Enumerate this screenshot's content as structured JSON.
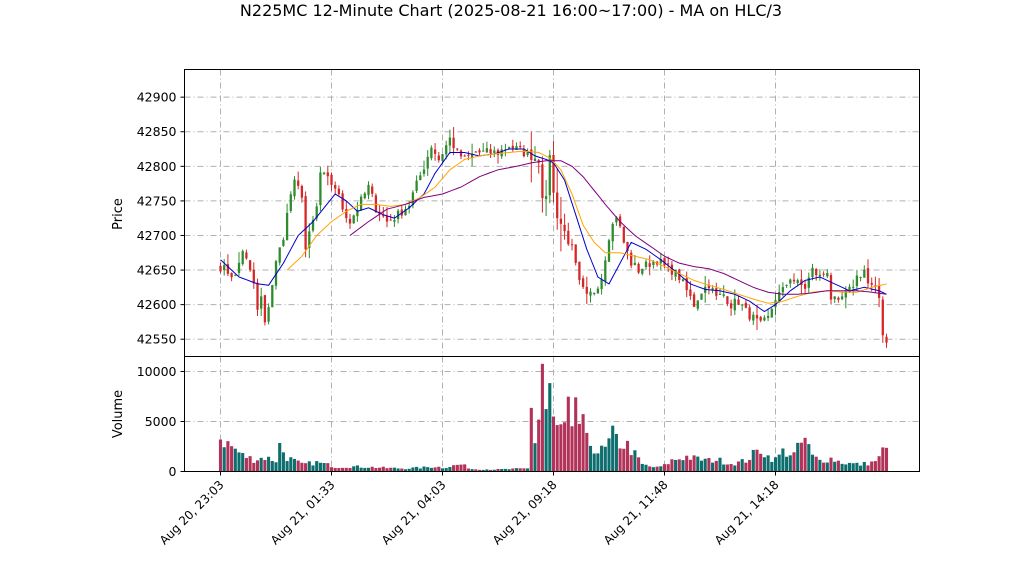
{
  "chart_data": {
    "type": "candlestick",
    "title": "N225MC 12-Minute Chart (2025-08-21 16:00~17:00) - MA on HLC/3",
    "price_panel": {
      "ylabel": "Price",
      "ylim": [
        42525,
        42940
      ],
      "yticks": [
        42550,
        42600,
        42650,
        42700,
        42750,
        42800,
        42850,
        42900
      ],
      "grid": true
    },
    "volume_panel": {
      "ylabel": "Volume",
      "ylim": [
        0,
        11500
      ],
      "yticks": [
        0,
        5000,
        10000
      ],
      "grid": true
    },
    "x_tick_labels": [
      "Aug 20, 23:03",
      "Aug 21, 01:33",
      "Aug 21, 04:03",
      "Aug 21, 09:18",
      "Aug 21, 11:48",
      "Aug 21, 14:18"
    ],
    "x_tick_index": [
      0,
      30,
      60,
      90,
      120,
      150
    ],
    "n_bars": 181,
    "colors": {
      "up": "#2e8b2e",
      "down": "#d62728",
      "volume_up": "#0e6e6e",
      "volume_down": "#b2335a",
      "ma_short": "#0000cc",
      "ma_mid": "#ffa500",
      "ma_long": "#800080",
      "grid": "#b0b0b0"
    },
    "close_anchors": [
      [
        0,
        42655
      ],
      [
        4,
        42640
      ],
      [
        6,
        42680
      ],
      [
        9,
        42630
      ],
      [
        10,
        42590
      ],
      [
        11,
        42610
      ],
      [
        12,
        42570
      ],
      [
        13,
        42600
      ],
      [
        15,
        42660
      ],
      [
        17,
        42700
      ],
      [
        19,
        42760
      ],
      [
        20,
        42775
      ],
      [
        22,
        42760
      ],
      [
        23,
        42680
      ],
      [
        26,
        42740
      ],
      [
        27,
        42790
      ],
      [
        29,
        42780
      ],
      [
        31,
        42770
      ],
      [
        33,
        42740
      ],
      [
        35,
        42720
      ],
      [
        36,
        42730
      ],
      [
        38,
        42750
      ],
      [
        40,
        42770
      ],
      [
        42,
        42740
      ],
      [
        45,
        42720
      ],
      [
        48,
        42730
      ],
      [
        51,
        42745
      ],
      [
        52,
        42760
      ],
      [
        55,
        42800
      ],
      [
        57,
        42830
      ],
      [
        59,
        42810
      ],
      [
        62,
        42840
      ],
      [
        64,
        42820
      ],
      [
        66,
        42810
      ],
      [
        69,
        42820
      ],
      [
        72,
        42820
      ],
      [
        75,
        42820
      ],
      [
        78,
        42830
      ],
      [
        82,
        42820
      ],
      [
        86,
        42810
      ],
      [
        87,
        42760
      ],
      [
        88,
        42750
      ],
      [
        89,
        42820
      ],
      [
        90,
        42760
      ],
      [
        91,
        42730
      ],
      [
        95,
        42680
      ],
      [
        97,
        42630
      ],
      [
        99,
        42610
      ],
      [
        101,
        42620
      ],
      [
        103,
        42640
      ],
      [
        105,
        42700
      ],
      [
        107,
        42730
      ],
      [
        109,
        42690
      ],
      [
        111,
        42660
      ],
      [
        113,
        42650
      ],
      [
        116,
        42660
      ],
      [
        118,
        42665
      ],
      [
        120,
        42655
      ],
      [
        122,
        42650
      ],
      [
        124,
        42640
      ],
      [
        126,
        42620
      ],
      [
        128,
        42600
      ],
      [
        130,
        42620
      ],
      [
        132,
        42630
      ],
      [
        134,
        42610
      ],
      [
        136,
        42615
      ],
      [
        138,
        42600
      ],
      [
        140,
        42605
      ],
      [
        142,
        42590
      ],
      [
        144,
        42580
      ],
      [
        146,
        42570
      ],
      [
        148,
        42580
      ],
      [
        150,
        42610
      ],
      [
        152,
        42620
      ],
      [
        154,
        42640
      ],
      [
        156,
        42630
      ],
      [
        158,
        42625
      ],
      [
        160,
        42650
      ],
      [
        162,
        42640
      ],
      [
        164,
        42650
      ],
      [
        165,
        42610
      ],
      [
        167,
        42600
      ],
      [
        168,
        42610
      ],
      [
        170,
        42620
      ],
      [
        172,
        42640
      ],
      [
        174,
        42650
      ],
      [
        175,
        42630
      ],
      [
        177,
        42620
      ],
      [
        178,
        42610
      ],
      [
        179,
        42560
      ],
      [
        180,
        42545
      ]
    ],
    "volume_anchors": [
      [
        0,
        3300
      ],
      [
        3,
        2500
      ],
      [
        6,
        1600
      ],
      [
        9,
        1200
      ],
      [
        12,
        1400
      ],
      [
        15,
        1100
      ],
      [
        16,
        2600
      ],
      [
        18,
        1400
      ],
      [
        22,
        700
      ],
      [
        26,
        900
      ],
      [
        30,
        600
      ],
      [
        31,
        450
      ],
      [
        35,
        500
      ],
      [
        40,
        450
      ],
      [
        45,
        350
      ],
      [
        50,
        300
      ],
      [
        55,
        400
      ],
      [
        58,
        500
      ],
      [
        60,
        400
      ],
      [
        65,
        700
      ],
      [
        68,
        250
      ],
      [
        75,
        200
      ],
      [
        79,
        250
      ],
      [
        83,
        300
      ],
      [
        84,
        7000
      ],
      [
        85,
        3000
      ],
      [
        86,
        5200
      ],
      [
        87,
        10800
      ],
      [
        88,
        6000
      ],
      [
        89,
        7800
      ],
      [
        90,
        5000
      ],
      [
        91,
        4300
      ],
      [
        93,
        4000
      ],
      [
        94,
        6200
      ],
      [
        95,
        3500
      ],
      [
        96,
        7700
      ],
      [
        97,
        4800
      ],
      [
        98,
        4500
      ],
      [
        99,
        3000
      ],
      [
        100,
        2800
      ],
      [
        102,
        2000
      ],
      [
        104,
        2200
      ],
      [
        106,
        3600
      ],
      [
        108,
        2800
      ],
      [
        110,
        2600
      ],
      [
        112,
        1700
      ],
      [
        114,
        700
      ],
      [
        116,
        500
      ],
      [
        118,
        400
      ],
      [
        120,
        600
      ],
      [
        122,
        1100
      ],
      [
        124,
        1300
      ],
      [
        126,
        1500
      ],
      [
        128,
        1300
      ],
      [
        130,
        1200
      ],
      [
        132,
        1100
      ],
      [
        134,
        1200
      ],
      [
        136,
        1000
      ],
      [
        138,
        800
      ],
      [
        140,
        900
      ],
      [
        142,
        1100
      ],
      [
        144,
        1700
      ],
      [
        146,
        2200
      ],
      [
        148,
        1500
      ],
      [
        150,
        1200
      ],
      [
        152,
        2000
      ],
      [
        155,
        1700
      ],
      [
        157,
        2800
      ],
      [
        158,
        3200
      ],
      [
        160,
        1500
      ],
      [
        162,
        1100
      ],
      [
        165,
        1300
      ],
      [
        168,
        900
      ],
      [
        170,
        800
      ],
      [
        173,
        700
      ],
      [
        176,
        900
      ],
      [
        178,
        1300
      ],
      [
        179,
        2200
      ],
      [
        180,
        2000
      ]
    ],
    "ma_anchors": {
      "short": [
        [
          0,
          42665
        ],
        [
          5,
          42640
        ],
        [
          10,
          42630
        ],
        [
          13,
          42628
        ],
        [
          17,
          42660
        ],
        [
          21,
          42700
        ],
        [
          25,
          42720
        ],
        [
          28,
          42740
        ],
        [
          31,
          42760
        ],
        [
          34,
          42750
        ],
        [
          37,
          42735
        ],
        [
          40,
          42740
        ],
        [
          44,
          42730
        ],
        [
          47,
          42725
        ],
        [
          51,
          42740
        ],
        [
          55,
          42760
        ],
        [
          58,
          42790
        ],
        [
          62,
          42820
        ],
        [
          66,
          42820
        ],
        [
          70,
          42815
        ],
        [
          74,
          42818
        ],
        [
          78,
          42825
        ],
        [
          82,
          42825
        ],
        [
          85,
          42815
        ],
        [
          88,
          42810
        ],
        [
          90,
          42805
        ],
        [
          93,
          42780
        ],
        [
          96,
          42730
        ],
        [
          99,
          42680
        ],
        [
          102,
          42640
        ],
        [
          105,
          42630
        ],
        [
          108,
          42660
        ],
        [
          111,
          42690
        ],
        [
          115,
          42680
        ],
        [
          119,
          42665
        ],
        [
          123,
          42648
        ],
        [
          127,
          42630
        ],
        [
          131,
          42622
        ],
        [
          135,
          42620
        ],
        [
          139,
          42615
        ],
        [
          143,
          42605
        ],
        [
          147,
          42590
        ],
        [
          150,
          42600
        ],
        [
          154,
          42620
        ],
        [
          158,
          42635
        ],
        [
          162,
          42640
        ],
        [
          166,
          42630
        ],
        [
          170,
          42620
        ],
        [
          174,
          42625
        ],
        [
          178,
          42620
        ],
        [
          180,
          42615
        ]
      ],
      "mid": [
        [
          18,
          42650
        ],
        [
          22,
          42670
        ],
        [
          26,
          42700
        ],
        [
          30,
          42720
        ],
        [
          34,
          42735
        ],
        [
          38,
          42745
        ],
        [
          42,
          42745
        ],
        [
          46,
          42742
        ],
        [
          50,
          42745
        ],
        [
          54,
          42755
        ],
        [
          58,
          42770
        ],
        [
          62,
          42795
        ],
        [
          66,
          42810
        ],
        [
          70,
          42815
        ],
        [
          74,
          42818
        ],
        [
          78,
          42820
        ],
        [
          82,
          42822
        ],
        [
          86,
          42820
        ],
        [
          89,
          42812
        ],
        [
          92,
          42795
        ],
        [
          95,
          42760
        ],
        [
          98,
          42715
        ],
        [
          101,
          42690
        ],
        [
          104,
          42675
        ],
        [
          108,
          42675
        ],
        [
          112,
          42670
        ],
        [
          116,
          42665
        ],
        [
          120,
          42655
        ],
        [
          124,
          42645
        ],
        [
          128,
          42635
        ],
        [
          132,
          42628
        ],
        [
          136,
          42622
        ],
        [
          140,
          42615
        ],
        [
          144,
          42608
        ],
        [
          148,
          42602
        ],
        [
          152,
          42605
        ],
        [
          156,
          42612
        ],
        [
          160,
          42618
        ],
        [
          164,
          42620
        ],
        [
          168,
          42618
        ],
        [
          172,
          42618
        ],
        [
          176,
          42625
        ],
        [
          180,
          42630
        ]
      ],
      "long": [
        [
          35,
          42700
        ],
        [
          40,
          42720
        ],
        [
          45,
          42738
        ],
        [
          50,
          42745
        ],
        [
          55,
          42755
        ],
        [
          60,
          42760
        ],
        [
          65,
          42770
        ],
        [
          70,
          42785
        ],
        [
          75,
          42795
        ],
        [
          80,
          42800
        ],
        [
          84,
          42805
        ],
        [
          88,
          42808
        ],
        [
          92,
          42808
        ],
        [
          95,
          42800
        ],
        [
          98,
          42785
        ],
        [
          101,
          42765
        ],
        [
          104,
          42745
        ],
        [
          108,
          42720
        ],
        [
          112,
          42700
        ],
        [
          116,
          42685
        ],
        [
          120,
          42670
        ],
        [
          124,
          42660
        ],
        [
          128,
          42655
        ],
        [
          132,
          42652
        ],
        [
          136,
          42645
        ],
        [
          140,
          42635
        ],
        [
          144,
          42625
        ],
        [
          148,
          42618
        ],
        [
          152,
          42615
        ],
        [
          156,
          42615
        ],
        [
          160,
          42617
        ],
        [
          164,
          42620
        ],
        [
          168,
          42620
        ],
        [
          172,
          42620
        ],
        [
          176,
          42618
        ],
        [
          180,
          42615
        ]
      ]
    }
  }
}
